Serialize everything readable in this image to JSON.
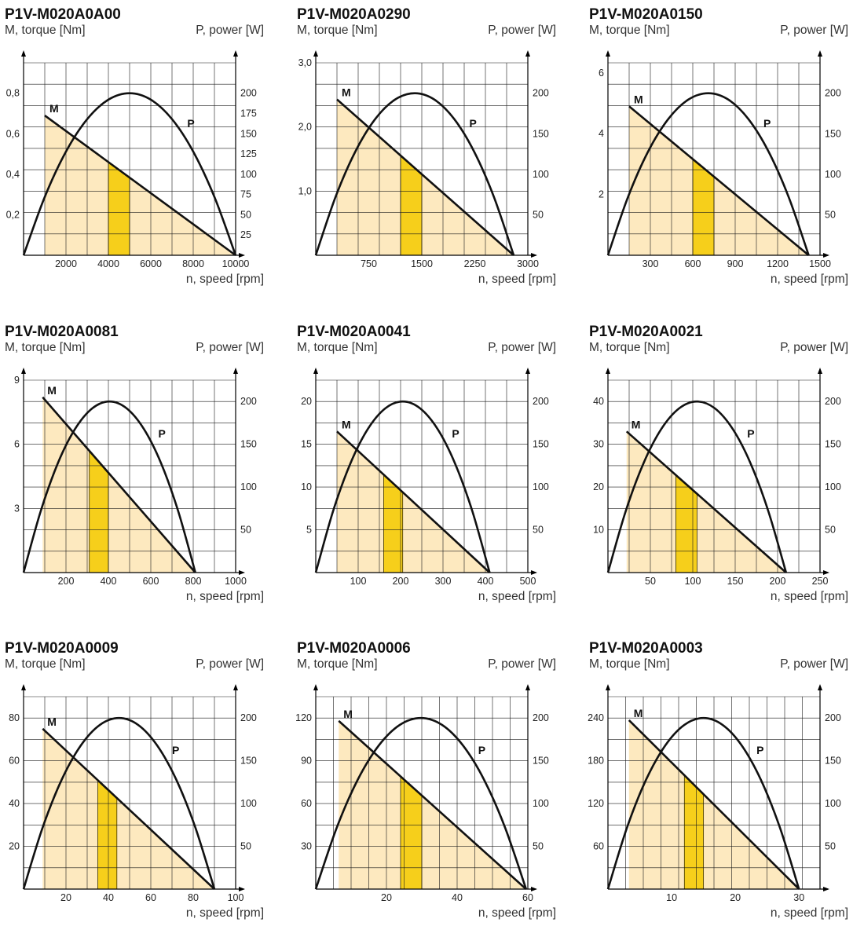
{
  "colors": {
    "grid": "#1a1a1a",
    "fill_light": "#fde9bf",
    "fill_highlight": "#f6cf1b",
    "curve": "#111111"
  },
  "labels": {
    "y_left": "M, torque [Nm]",
    "y_right": "P, power [W]",
    "x": "n, speed [rpm]",
    "torque_curve": "M",
    "power_curve": "P"
  },
  "chart_data": [
    {
      "type": "line",
      "title": "P1V-M020A0A00",
      "xlabel": "n, speed [rpm]",
      "ylabel": "M, torque [Nm]",
      "y2label": "P, power [W]",
      "xlim": [
        0,
        10000
      ],
      "ylim": [
        0,
        0.95
      ],
      "y2lim": [
        0,
        237.5
      ],
      "xticks": [
        "2000",
        "4000",
        "6000",
        "8000",
        "10000"
      ],
      "xtick_values": [
        2000,
        4000,
        6000,
        8000,
        10000
      ],
      "yticks": [
        "0,2",
        "0,4",
        "0,6",
        "0,8"
      ],
      "ytick_values": [
        0.2,
        0.4,
        0.6,
        0.8
      ],
      "y2ticks": [
        "25",
        "50",
        "75",
        "100",
        "125",
        "150",
        "175",
        "200"
      ],
      "y2tick_values": [
        25,
        50,
        75,
        100,
        125,
        150,
        175,
        200
      ],
      "grid_x": 10,
      "grid_y": 9,
      "series": [
        {
          "name": "M",
          "axis": "left",
          "x": [
            1000,
            10000
          ],
          "y": [
            0.69,
            0
          ]
        },
        {
          "name": "P",
          "axis": "right",
          "x": [
            0,
            1000,
            2000,
            3000,
            4000,
            5000,
            6000,
            7000,
            8000,
            9000,
            10000
          ],
          "y": [
            0,
            72,
            128,
            168,
            192,
            200,
            192,
            168,
            128,
            72,
            0
          ]
        }
      ],
      "shaded_range": [
        1000,
        10000
      ],
      "highlight_range": [
        4000,
        5000
      ]
    },
    {
      "type": "line",
      "title": "P1V-M020A0290",
      "xlabel": "n, speed [rpm]",
      "ylabel": "M, torque [Nm]",
      "y2label": "P, power [W]",
      "xlim": [
        0,
        3000
      ],
      "ylim": [
        0,
        3.0
      ],
      "y2lim": [
        0,
        237.5
      ],
      "xticks": [
        "750",
        "1500",
        "2250",
        "3000"
      ],
      "xtick_values": [
        750,
        1500,
        2250,
        3000
      ],
      "yticks": [
        "1,0",
        "2,0",
        "3,0"
      ],
      "ytick_values": [
        1.0,
        2.0,
        3.0
      ],
      "y2ticks": [
        "50",
        "100",
        "150",
        "200"
      ],
      "y2tick_values": [
        50,
        100,
        150,
        200
      ],
      "grid_x": 10,
      "grid_y": 9,
      "series": [
        {
          "name": "M",
          "axis": "left",
          "x": [
            300,
            2800
          ],
          "y": [
            2.43,
            0
          ]
        },
        {
          "name": "P",
          "axis": "right",
          "x": [
            0,
            280,
            560,
            840,
            1120,
            1400,
            1680,
            1960,
            2240,
            2520,
            2800
          ],
          "y": [
            0,
            72,
            128,
            168,
            192,
            200,
            192,
            168,
            128,
            72,
            0
          ]
        }
      ],
      "shaded_range": [
        300,
        2800
      ],
      "highlight_range": [
        1200,
        1500
      ]
    },
    {
      "type": "line",
      "title": "P1V-M020A0150",
      "xlabel": "n, speed [rpm]",
      "ylabel": "M, torque [Nm]",
      "y2label": "P, power [W]",
      "xlim": [
        0,
        1500
      ],
      "ylim": [
        0,
        6.33
      ],
      "y2lim": [
        0,
        237.5
      ],
      "xticks": [
        "300",
        "600",
        "900",
        "1200",
        "1500"
      ],
      "xtick_values": [
        300,
        600,
        900,
        1200,
        1500
      ],
      "yticks": [
        "2",
        "4",
        "6"
      ],
      "ytick_values": [
        2,
        4,
        6
      ],
      "y2ticks": [
        "50",
        "100",
        "150",
        "200"
      ],
      "y2tick_values": [
        50,
        100,
        150,
        200
      ],
      "grid_x": 10,
      "grid_y": 9,
      "series": [
        {
          "name": "M",
          "axis": "left",
          "x": [
            150,
            1420
          ],
          "y": [
            4.9,
            0
          ]
        },
        {
          "name": "P",
          "axis": "right",
          "x": [
            0,
            142,
            284,
            426,
            568,
            710,
            852,
            994,
            1136,
            1278,
            1420
          ],
          "y": [
            0,
            72,
            128,
            168,
            192,
            200,
            192,
            168,
            128,
            72,
            0
          ]
        }
      ],
      "shaded_range": [
        150,
        1420
      ],
      "highlight_range": [
        600,
        750
      ]
    },
    {
      "type": "line",
      "title": "P1V-M020A0081",
      "xlabel": "n, speed [rpm]",
      "ylabel": "M, torque [Nm]",
      "y2label": "P, power [W]",
      "xlim": [
        0,
        1000
      ],
      "ylim": [
        0,
        9
      ],
      "y2lim": [
        0,
        225
      ],
      "xticks": [
        "200",
        "400",
        "600",
        "800",
        "1000"
      ],
      "xtick_values": [
        200,
        400,
        600,
        800,
        1000
      ],
      "yticks": [
        "3",
        "6",
        "9"
      ],
      "ytick_values": [
        3,
        6,
        9
      ],
      "y2ticks": [
        "50",
        "100",
        "150",
        "200"
      ],
      "y2tick_values": [
        50,
        100,
        150,
        200
      ],
      "grid_x": 10,
      "grid_y": 9,
      "series": [
        {
          "name": "M",
          "axis": "left",
          "x": [
            90,
            810
          ],
          "y": [
            8.2,
            0
          ]
        },
        {
          "name": "P",
          "axis": "right",
          "x": [
            0,
            81,
            162,
            243,
            324,
            405,
            486,
            567,
            648,
            729,
            810
          ],
          "y": [
            0,
            72,
            128,
            168,
            192,
            200,
            192,
            168,
            128,
            72,
            0
          ]
        }
      ],
      "shaded_range": [
        90,
        810
      ],
      "highlight_range": [
        310,
        400
      ]
    },
    {
      "type": "line",
      "title": "P1V-M020A0041",
      "xlabel": "n, speed [rpm]",
      "ylabel": "M, torque [Nm]",
      "y2label": "P, power [W]",
      "xlim": [
        0,
        500
      ],
      "ylim": [
        0,
        22.5
      ],
      "y2lim": [
        0,
        225
      ],
      "xticks": [
        "100",
        "200",
        "300",
        "400",
        "500"
      ],
      "xtick_values": [
        100,
        200,
        300,
        400,
        500
      ],
      "yticks": [
        "5",
        "10",
        "15",
        "20"
      ],
      "ytick_values": [
        5,
        10,
        15,
        20
      ],
      "y2ticks": [
        "50",
        "100",
        "150",
        "200"
      ],
      "y2tick_values": [
        50,
        100,
        150,
        200
      ],
      "grid_x": 10,
      "grid_y": 9,
      "series": [
        {
          "name": "M",
          "axis": "left",
          "x": [
            50,
            410
          ],
          "y": [
            16.5,
            0
          ]
        },
        {
          "name": "P",
          "axis": "right",
          "x": [
            0,
            41,
            82,
            123,
            164,
            205,
            246,
            287,
            328,
            369,
            410
          ],
          "y": [
            0,
            72,
            128,
            168,
            192,
            200,
            192,
            168,
            128,
            72,
            0
          ]
        }
      ],
      "shaded_range": [
        50,
        410
      ],
      "highlight_range": [
        160,
        205
      ]
    },
    {
      "type": "line",
      "title": "P1V-M020A0021",
      "xlabel": "n, speed [rpm]",
      "ylabel": "M, torque [Nm]",
      "y2label": "P, power [W]",
      "xlim": [
        0,
        250
      ],
      "ylim": [
        0,
        45
      ],
      "y2lim": [
        0,
        225
      ],
      "xticks": [
        "50",
        "100",
        "150",
        "200",
        "250"
      ],
      "xtick_values": [
        50,
        100,
        150,
        200,
        250
      ],
      "yticks": [
        "10",
        "20",
        "30",
        "40"
      ],
      "ytick_values": [
        10,
        20,
        30,
        40
      ],
      "y2ticks": [
        "50",
        "100",
        "150",
        "200"
      ],
      "y2tick_values": [
        50,
        100,
        150,
        200
      ],
      "grid_x": 10,
      "grid_y": 9,
      "series": [
        {
          "name": "M",
          "axis": "left",
          "x": [
            22,
            210
          ],
          "y": [
            33,
            0
          ]
        },
        {
          "name": "P",
          "axis": "right",
          "x": [
            0,
            21,
            42,
            63,
            84,
            105,
            126,
            147,
            168,
            189,
            210
          ],
          "y": [
            0,
            72,
            128,
            168,
            192,
            200,
            192,
            168,
            128,
            72,
            0
          ]
        }
      ],
      "shaded_range": [
        22,
        210
      ],
      "highlight_range": [
        80,
        105
      ]
    },
    {
      "type": "line",
      "title": "P1V-M020A0009",
      "xlabel": "n, speed [rpm]",
      "ylabel": "M, torque [Nm]",
      "y2label": "P, power [W]",
      "xlim": [
        0,
        100
      ],
      "ylim": [
        0,
        90
      ],
      "y2lim": [
        0,
        225
      ],
      "xticks": [
        "20",
        "40",
        "60",
        "80",
        "100"
      ],
      "xtick_values": [
        20,
        40,
        60,
        80,
        100
      ],
      "yticks": [
        "20",
        "40",
        "60",
        "80"
      ],
      "ytick_values": [
        20,
        40,
        60,
        80
      ],
      "y2ticks": [
        "50",
        "100",
        "150",
        "200"
      ],
      "y2tick_values": [
        50,
        100,
        150,
        200
      ],
      "grid_x": 10,
      "grid_y": 9,
      "series": [
        {
          "name": "M",
          "axis": "left",
          "x": [
            9,
            90
          ],
          "y": [
            75,
            0
          ]
        },
        {
          "name": "P",
          "axis": "right",
          "x": [
            0,
            9,
            18,
            27,
            36,
            45,
            54,
            63,
            72,
            81,
            90
          ],
          "y": [
            0,
            72,
            128,
            168,
            192,
            200,
            192,
            168,
            128,
            72,
            0
          ]
        }
      ],
      "shaded_range": [
        9,
        90
      ],
      "highlight_range": [
        35,
        44
      ]
    },
    {
      "type": "line",
      "title": "P1V-M020A0006",
      "xlabel": "n, speed [rpm]",
      "ylabel": "M, torque [Nm]",
      "y2label": "P, power [W]",
      "xlim": [
        0,
        60
      ],
      "ylim": [
        0,
        135
      ],
      "y2lim": [
        0,
        225
      ],
      "xticks": [
        "20",
        "40",
        "60"
      ],
      "xtick_values": [
        20,
        40,
        60
      ],
      "yticks": [
        "30",
        "60",
        "90",
        "120"
      ],
      "ytick_values": [
        30,
        60,
        90,
        120
      ],
      "y2ticks": [
        "50",
        "100",
        "150",
        "200"
      ],
      "y2tick_values": [
        50,
        100,
        150,
        200
      ],
      "grid_x": 12,
      "grid_y": 9,
      "series": [
        {
          "name": "M",
          "axis": "left",
          "x": [
            6.5,
            59.5
          ],
          "y": [
            118,
            0
          ]
        },
        {
          "name": "P",
          "axis": "right",
          "x": [
            0,
            5.95,
            11.9,
            17.85,
            23.8,
            29.75,
            35.7,
            41.65,
            47.6,
            53.55,
            59.5
          ],
          "y": [
            0,
            72,
            128,
            168,
            192,
            200,
            192,
            168,
            128,
            72,
            0
          ]
        }
      ],
      "shaded_range": [
        6.5,
        59.5
      ],
      "highlight_range": [
        24,
        30
      ]
    },
    {
      "type": "line",
      "title": "P1V-M020A0003",
      "xlabel": "n, speed [rpm]",
      "ylabel": "M, torque [Nm]",
      "y2label": "P, power [W]",
      "xlim": [
        0,
        33.3
      ],
      "ylim": [
        0,
        270
      ],
      "y2lim": [
        0,
        225
      ],
      "xticks": [
        "10",
        "20",
        "30"
      ],
      "xtick_values": [
        10,
        20,
        30
      ],
      "yticks": [
        "60",
        "120",
        "180",
        "240"
      ],
      "ytick_values": [
        60,
        120,
        180,
        240
      ],
      "y2ticks": [
        "50",
        "100",
        "150",
        "200"
      ],
      "y2tick_values": [
        50,
        100,
        150,
        200
      ],
      "grid_x": 12,
      "grid_y": 9,
      "series": [
        {
          "name": "M",
          "axis": "left",
          "x": [
            3.3,
            30
          ],
          "y": [
            237,
            0
          ]
        },
        {
          "name": "P",
          "axis": "right",
          "x": [
            0,
            3,
            6,
            9,
            12,
            15,
            18,
            21,
            24,
            27,
            30
          ],
          "y": [
            0,
            72,
            128,
            168,
            192,
            200,
            192,
            168,
            128,
            72,
            0
          ]
        }
      ],
      "shaded_range": [
        3.3,
        30
      ],
      "highlight_range": [
        12,
        15
      ]
    }
  ]
}
